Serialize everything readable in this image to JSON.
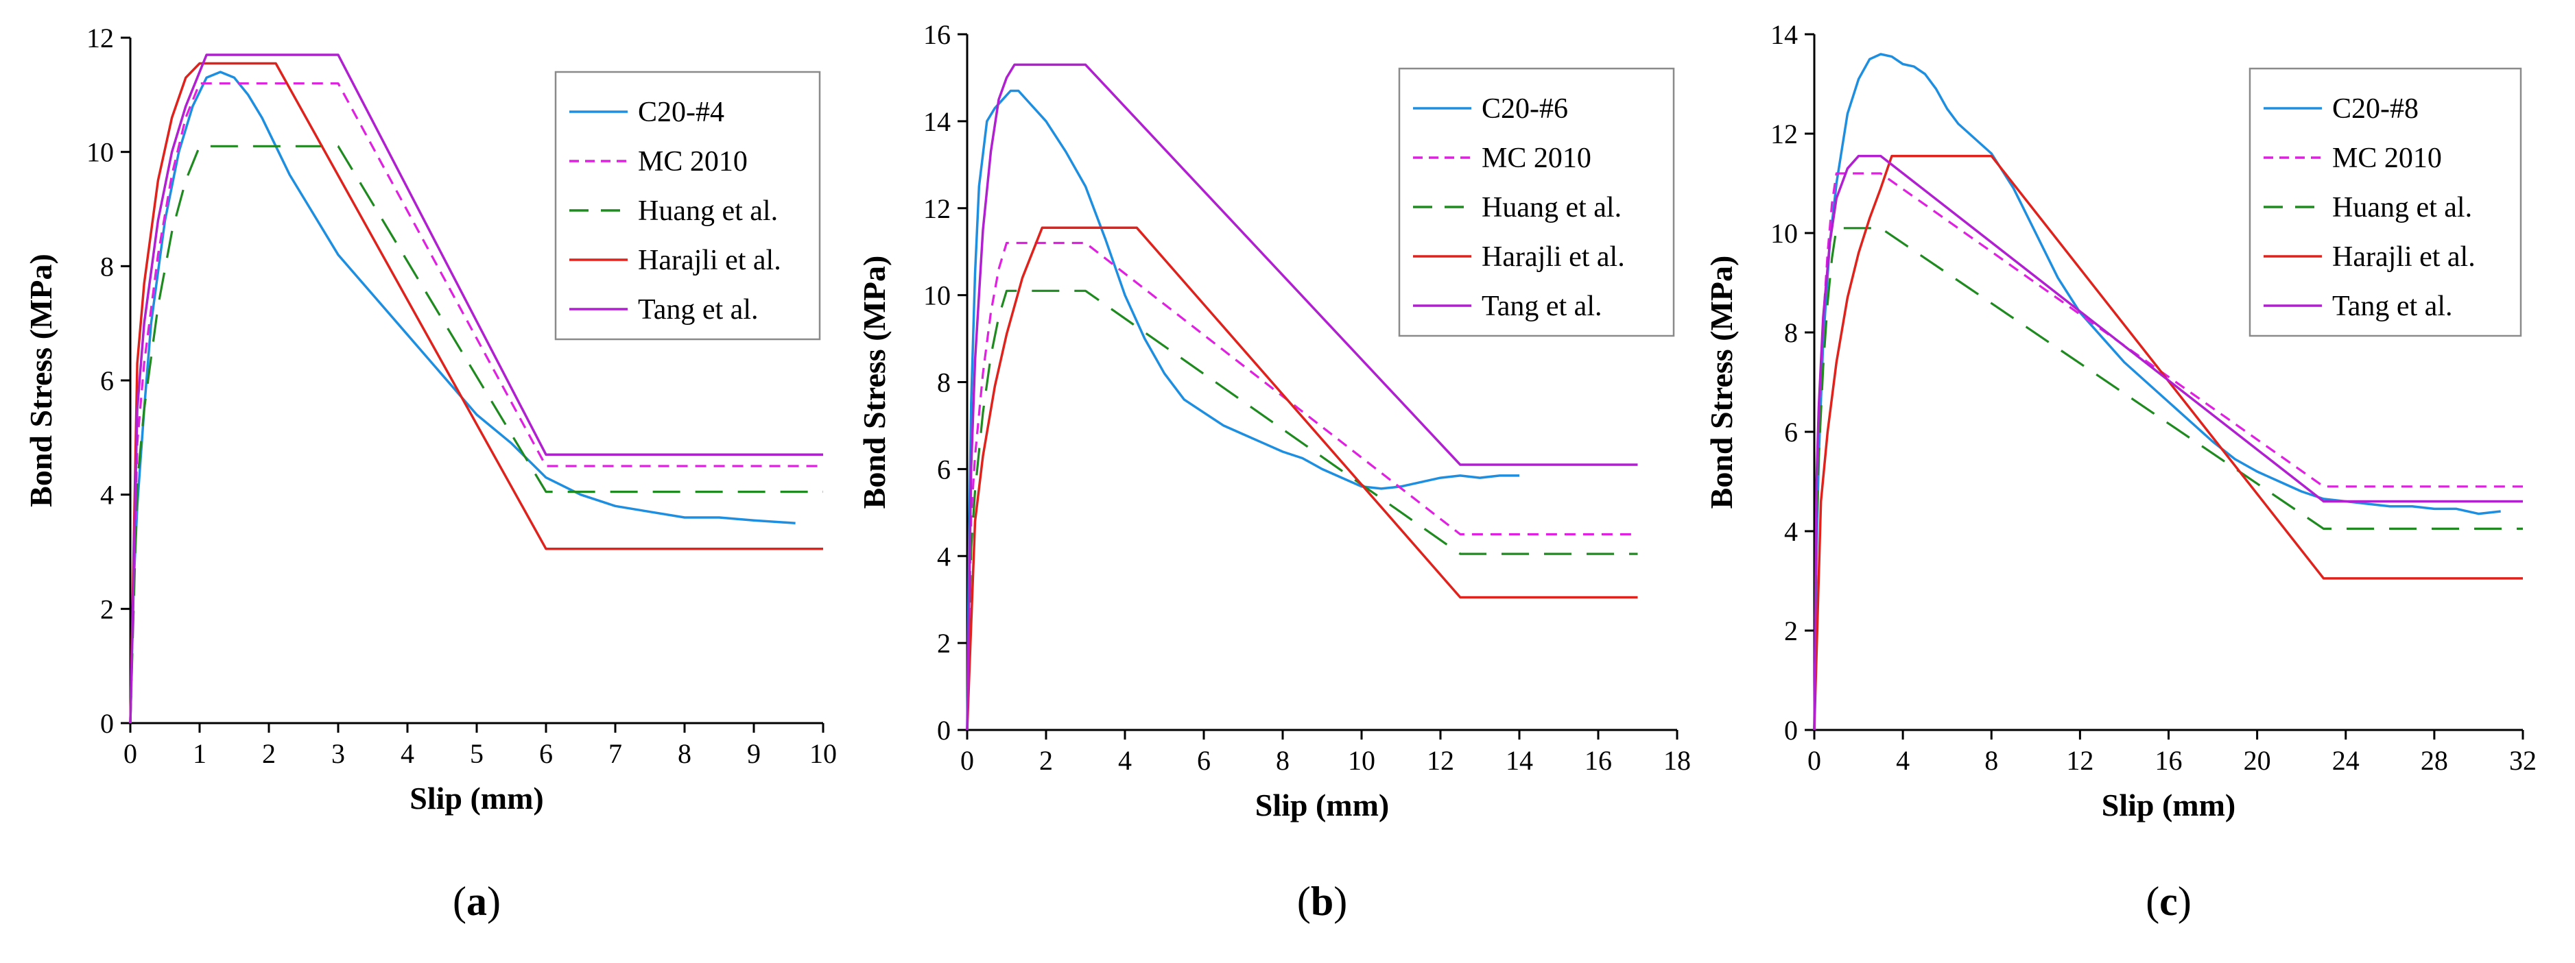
{
  "chart_data": [
    {
      "panel": "a",
      "panel_label": "(a)",
      "panel_letter": "a",
      "type": "line",
      "xlabel": "Slip (mm)",
      "ylabel": "Bond Stress (MPa)",
      "xlim": [
        0,
        10
      ],
      "ylim": [
        0,
        12
      ],
      "xticks": [
        0,
        1,
        2,
        3,
        4,
        5,
        6,
        7,
        8,
        9,
        10
      ],
      "yticks": [
        0,
        2,
        4,
        6,
        8,
        10,
        12
      ],
      "legend_position": "top-right",
      "series": [
        {
          "name": "C20-#4",
          "color": "#1e8fe0",
          "dash": "solid",
          "x": [
            0,
            0.05,
            0.1,
            0.2,
            0.3,
            0.5,
            0.7,
            0.9,
            1.1,
            1.3,
            1.5,
            1.7,
            1.9,
            2.1,
            2.3,
            2.6,
            3.0,
            3.5,
            4.0,
            4.5,
            5.0,
            5.5,
            6.0,
            6.5,
            7.0,
            7.5,
            8.0,
            8.5,
            9.0,
            9.6
          ],
          "y": [
            0,
            2.5,
            3.8,
            5.5,
            7.0,
            8.8,
            10.0,
            10.8,
            11.3,
            11.4,
            11.3,
            11.0,
            10.6,
            10.1,
            9.6,
            9.0,
            8.2,
            7.5,
            6.8,
            6.1,
            5.4,
            4.9,
            4.3,
            4.0,
            3.8,
            3.7,
            3.6,
            3.6,
            3.55,
            3.5
          ]
        },
        {
          "name": "MC 2010",
          "color": "#e020e0",
          "dash": "short",
          "x": [
            0,
            0.1,
            0.2,
            0.4,
            0.6,
            0.8,
            1.0,
            3.0,
            6.0,
            10
          ],
          "y": [
            0,
            4.9,
            6.3,
            8.2,
            9.6,
            10.6,
            11.2,
            11.2,
            4.5,
            4.5
          ]
        },
        {
          "name": "Huang et al.",
          "color": "#1f8a1f",
          "dash": "long",
          "x": [
            0,
            0.1,
            0.2,
            0.4,
            0.6,
            0.8,
            1.0,
            3.0,
            6.0,
            10
          ],
          "y": [
            0,
            4.2,
            5.5,
            7.3,
            8.6,
            9.5,
            10.1,
            10.1,
            4.05,
            4.05
          ]
        },
        {
          "name": "Harajli et al.",
          "color": "#e0221d",
          "dash": "solid",
          "x": [
            0,
            0.1,
            0.2,
            0.4,
            0.6,
            0.8,
            1.0,
            2.1,
            6.0,
            10
          ],
          "y": [
            0,
            6.3,
            7.7,
            9.5,
            10.6,
            11.3,
            11.55,
            11.55,
            3.05,
            3.05
          ]
        },
        {
          "name": "Tang et al.",
          "color": "#b01fd0",
          "dash": "solid",
          "x": [
            0,
            0.1,
            0.2,
            0.4,
            0.6,
            0.8,
            1.1,
            3.0,
            6.0,
            10
          ],
          "y": [
            0,
            5.5,
            7.0,
            8.8,
            10.0,
            10.8,
            11.7,
            11.7,
            4.7,
            4.7
          ]
        }
      ]
    },
    {
      "panel": "b",
      "panel_label": "(b)",
      "panel_letter": "b",
      "type": "line",
      "xlabel": "Slip (mm)",
      "ylabel": "Bond Stress (MPa)",
      "xlim": [
        0,
        18
      ],
      "ylim": [
        0,
        16
      ],
      "xticks": [
        0,
        2,
        4,
        6,
        8,
        10,
        12,
        14,
        16,
        18
      ],
      "yticks": [
        0,
        2,
        4,
        6,
        8,
        10,
        12,
        14,
        16
      ],
      "legend_position": "top-right",
      "series": [
        {
          "name": "C20-#6",
          "color": "#1e8fe0",
          "dash": "solid",
          "x": [
            0,
            0.05,
            0.1,
            0.2,
            0.3,
            0.5,
            0.7,
            0.9,
            1.1,
            1.3,
            1.6,
            2.0,
            2.5,
            3.0,
            3.5,
            4.0,
            4.5,
            5.0,
            5.5,
            6.0,
            6.5,
            7.0,
            7.5,
            8.0,
            8.5,
            9.0,
            9.5,
            10.0,
            10.5,
            11.0,
            11.5,
            12.0,
            12.5,
            13.0,
            13.5,
            14.0
          ],
          "y": [
            0,
            4.5,
            7.5,
            10.5,
            12.5,
            14.0,
            14.3,
            14.5,
            14.7,
            14.7,
            14.4,
            14.0,
            13.3,
            12.5,
            11.3,
            10.0,
            9.0,
            8.2,
            7.6,
            7.3,
            7.0,
            6.8,
            6.6,
            6.4,
            6.25,
            6.0,
            5.8,
            5.6,
            5.55,
            5.6,
            5.7,
            5.8,
            5.85,
            5.8,
            5.85,
            5.85
          ]
        },
        {
          "name": "MC 2010",
          "color": "#e020e0",
          "dash": "short",
          "x": [
            0,
            0.1,
            0.2,
            0.4,
            0.6,
            0.8,
            1.0,
            3.0,
            12.5,
            17
          ],
          "y": [
            0,
            4.9,
            6.3,
            8.2,
            9.6,
            10.6,
            11.2,
            11.2,
            4.5,
            4.5
          ]
        },
        {
          "name": "Huang et al.",
          "color": "#1f8a1f",
          "dash": "long",
          "x": [
            0,
            0.1,
            0.2,
            0.4,
            0.6,
            0.8,
            1.0,
            3.0,
            12.5,
            17
          ],
          "y": [
            0,
            4.2,
            5.5,
            7.3,
            8.6,
            9.5,
            10.1,
            10.1,
            4.05,
            4.05
          ]
        },
        {
          "name": "Harajli et al.",
          "color": "#e0221d",
          "dash": "solid",
          "x": [
            0,
            0.2,
            0.4,
            0.7,
            1.0,
            1.4,
            1.9,
            4.3,
            12.5,
            17
          ],
          "y": [
            0,
            4.8,
            6.3,
            7.9,
            9.1,
            10.4,
            11.55,
            11.55,
            3.05,
            3.05
          ]
        },
        {
          "name": "Tang et al.",
          "color": "#b01fd0",
          "dash": "solid",
          "x": [
            0,
            0.1,
            0.2,
            0.4,
            0.6,
            0.8,
            1.0,
            1.2,
            3.0,
            12.5,
            17
          ],
          "y": [
            0,
            6.0,
            8.5,
            11.5,
            13.3,
            14.5,
            15.0,
            15.3,
            15.3,
            6.1,
            6.1
          ]
        }
      ]
    },
    {
      "panel": "c",
      "panel_label": "(c)",
      "panel_letter": "c",
      "type": "line",
      "xlabel": "Slip (mm)",
      "ylabel": "Bond Stress (MPa)",
      "xlim": [
        0,
        32
      ],
      "ylim": [
        0,
        14
      ],
      "xticks": [
        0,
        4,
        8,
        12,
        16,
        20,
        24,
        28,
        32
      ],
      "yticks": [
        0,
        2,
        4,
        6,
        8,
        10,
        12,
        14
      ],
      "legend_position": "top-right",
      "series": [
        {
          "name": "C20-#8",
          "color": "#1e8fe0",
          "dash": "solid",
          "x": [
            0,
            0.1,
            0.2,
            0.4,
            0.7,
            1.0,
            1.5,
            2.0,
            2.5,
            3.0,
            3.5,
            4.0,
            4.5,
            5.0,
            5.5,
            6.0,
            6.5,
            7.0,
            7.5,
            8.0,
            9.0,
            10.0,
            11.0,
            12.0,
            13.0,
            14.0,
            15.0,
            16.0,
            17.0,
            18.0,
            19.0,
            20.0,
            21.0,
            22.0,
            23.0,
            24.0,
            25.0,
            26.0,
            27.0,
            28.0,
            29.0,
            30.0,
            31.0
          ],
          "y": [
            0,
            3.5,
            5.5,
            7.8,
            9.8,
            11.0,
            12.4,
            13.1,
            13.5,
            13.6,
            13.55,
            13.4,
            13.35,
            13.2,
            12.9,
            12.5,
            12.2,
            12.0,
            11.8,
            11.6,
            10.9,
            10.0,
            9.1,
            8.4,
            7.9,
            7.4,
            7.0,
            6.6,
            6.2,
            5.8,
            5.45,
            5.2,
            5.0,
            4.8,
            4.65,
            4.6,
            4.55,
            4.5,
            4.5,
            4.45,
            4.45,
            4.35,
            4.4
          ]
        },
        {
          "name": "MC 2010",
          "color": "#e020e0",
          "dash": "short",
          "x": [
            0,
            0.1,
            0.2,
            0.4,
            0.6,
            0.8,
            1.0,
            3.0,
            23.0,
            32
          ],
          "y": [
            0,
            4.9,
            6.3,
            8.2,
            9.6,
            10.6,
            11.2,
            11.2,
            4.9,
            4.9
          ]
        },
        {
          "name": "Huang et al.",
          "color": "#1f8a1f",
          "dash": "long",
          "x": [
            0,
            0.1,
            0.2,
            0.4,
            0.6,
            0.8,
            1.0,
            3.0,
            23.0,
            32
          ],
          "y": [
            0,
            4.2,
            5.5,
            7.3,
            8.6,
            9.5,
            10.1,
            10.1,
            4.05,
            4.05
          ]
        },
        {
          "name": "Harajli et al.",
          "color": "#e0221d",
          "dash": "solid",
          "x": [
            0,
            0.3,
            0.6,
            1.0,
            1.5,
            2.0,
            2.5,
            3.0,
            3.5,
            8.0,
            23.0,
            32
          ],
          "y": [
            0,
            4.6,
            6.0,
            7.4,
            8.7,
            9.6,
            10.3,
            10.9,
            11.55,
            11.55,
            3.05,
            3.05
          ]
        },
        {
          "name": "Tang et al.",
          "color": "#b01fd0",
          "dash": "solid",
          "x": [
            0,
            0.1,
            0.2,
            0.4,
            0.7,
            1.0,
            1.5,
            2.0,
            3.0,
            23.0,
            32
          ],
          "y": [
            0,
            5.0,
            6.5,
            8.3,
            9.8,
            10.7,
            11.3,
            11.55,
            11.55,
            4.6,
            4.6
          ]
        }
      ]
    }
  ]
}
